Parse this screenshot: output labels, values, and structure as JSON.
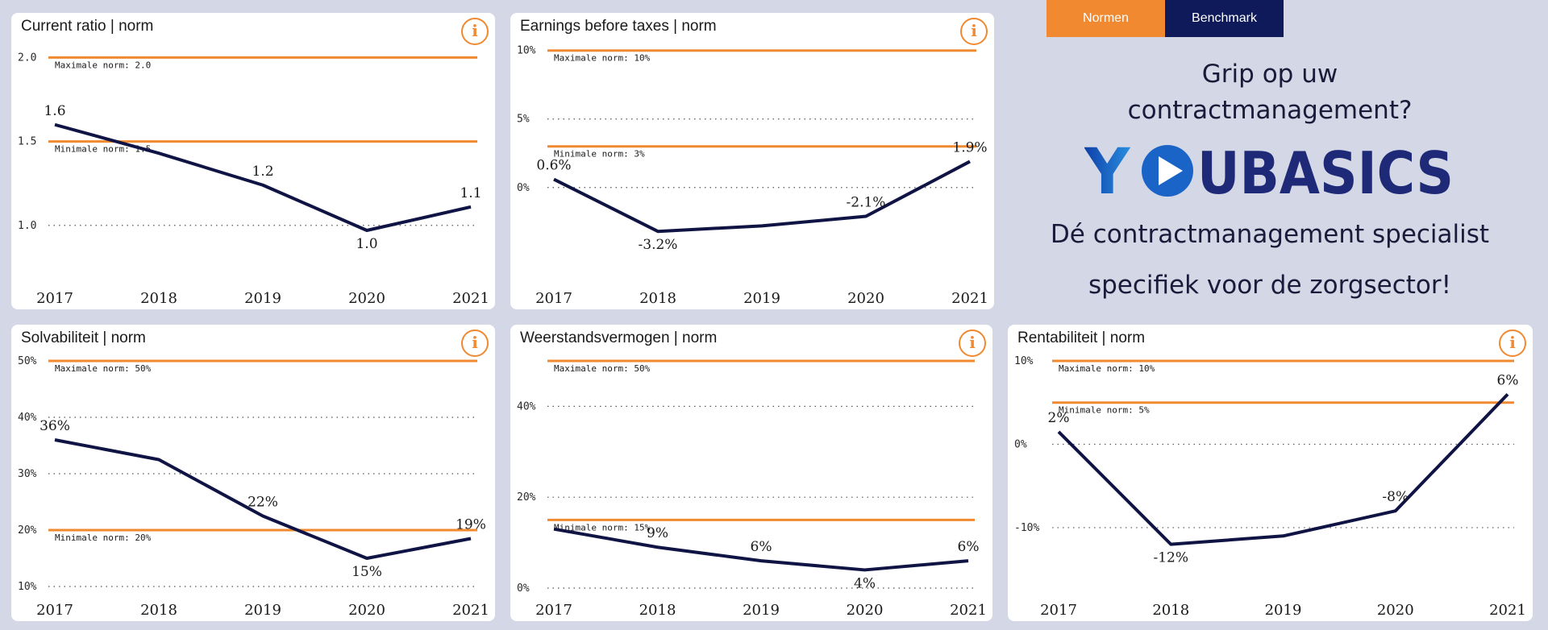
{
  "tabs": {
    "normen": "Normen",
    "benchmark": "Benchmark"
  },
  "ad": {
    "question_line1": "Grip op uw",
    "question_line2": "contractmanagement?",
    "logo_text": "YOUBASICS",
    "tagline_line1": "Dé contractmanagement specialist",
    "tagline_line2": "specifiek voor de zorgsector!"
  },
  "colors": {
    "accent": "#f0892f",
    "series": "#0f1445",
    "tab_dark": "#0f1a5a",
    "logo_dark": "#1e2a78",
    "logo_light": "#1f7fd6"
  },
  "info_icon_glyph": "i",
  "chart_data": [
    {
      "type": "line",
      "title": "Current ratio | norm",
      "categories": [
        "2017",
        "2018",
        "2019",
        "2020",
        "2021"
      ],
      "values": [
        1.6,
        1.43,
        1.24,
        0.97,
        1.11
      ],
      "value_labels": [
        "1.6",
        "",
        "1.2",
        "1.0",
        "1.1"
      ],
      "ylim": [
        0.85,
        2.05
      ],
      "yticks": [
        1.0,
        1.5,
        2.0
      ],
      "ytick_labels": [
        "1.0",
        "1.5",
        "2.0"
      ],
      "norms": [
        {
          "label": "Maximale norm: 2.0",
          "value": 2.0
        },
        {
          "label": "Minimale norm: 1.5",
          "value": 1.5
        }
      ]
    },
    {
      "type": "line",
      "title": "Earnings before taxes | norm",
      "categories": [
        "2017",
        "2018",
        "2019",
        "2020",
        "2021"
      ],
      "values": [
        0.6,
        -3.2,
        -2.8,
        -2.1,
        1.9
      ],
      "value_labels": [
        "0.6%",
        "-3.2%",
        "",
        "-2.1%",
        "1.9%"
      ],
      "ylim": [
        -4.6,
        10.1
      ],
      "yticks": [
        0,
        5,
        10
      ],
      "ytick_labels": [
        "0%",
        "5%",
        "10%"
      ],
      "norms": [
        {
          "label": "Maximale norm: 10%",
          "value": 10
        },
        {
          "label": "Minimale norm: 3%",
          "value": 3
        }
      ]
    },
    {
      "type": "line",
      "title": "Solvabiliteit | norm",
      "categories": [
        "2017",
        "2018",
        "2019",
        "2020",
        "2021"
      ],
      "values": [
        36,
        32.5,
        22.5,
        15,
        18.5
      ],
      "value_labels": [
        "36%",
        "",
        "22%",
        "15%",
        "19%"
      ],
      "ylim": [
        10,
        50
      ],
      "yticks": [
        10,
        20,
        30,
        40,
        50
      ],
      "ytick_labels": [
        "10%",
        "20%",
        "30%",
        "40%",
        "50%"
      ],
      "norms": [
        {
          "label": "Maximale norm: 50%",
          "value": 50
        },
        {
          "label": "Minimale norm: 20%",
          "value": 20
        }
      ]
    },
    {
      "type": "line",
      "title": "Weerstandsvermogen | norm",
      "categories": [
        "2017",
        "2018",
        "2019",
        "2020",
        "2021"
      ],
      "values": [
        13,
        9,
        6,
        4,
        6
      ],
      "value_labels": [
        "",
        "9%",
        "6%",
        "4%",
        "6%"
      ],
      "ylim": [
        0,
        50
      ],
      "yticks": [
        0,
        20,
        40
      ],
      "ytick_labels": [
        "0%",
        "20%",
        "40%"
      ],
      "norms": [
        {
          "label": "Maximale norm: 50%",
          "value": 50
        },
        {
          "label": "Minimale norm: 15%",
          "value": 15
        }
      ]
    },
    {
      "type": "line",
      "title": "Rentabiliteit | norm",
      "categories": [
        "2017",
        "2018",
        "2019",
        "2020",
        "2021"
      ],
      "values": [
        1.5,
        -12,
        -11,
        -8,
        6
      ],
      "value_labels": [
        "2%",
        "-12%",
        "",
        "-8%",
        "6%"
      ],
      "ylim": [
        -16,
        10
      ],
      "yticks": [
        -10,
        0,
        10
      ],
      "ytick_labels": [
        "-10%",
        "0%",
        "10%"
      ],
      "norms": [
        {
          "label": "Maximale norm: 10%",
          "value": 10
        },
        {
          "label": "Minimale norm: 5%",
          "value": 5
        }
      ]
    }
  ]
}
